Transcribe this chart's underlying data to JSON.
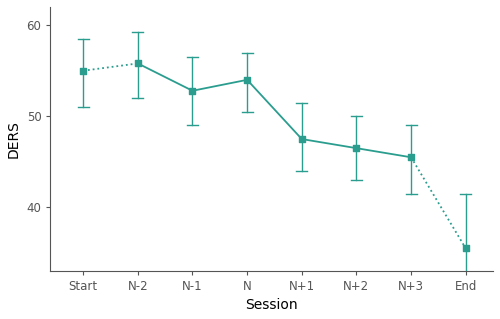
{
  "categories": [
    "Start",
    "N-2",
    "N-1",
    "N",
    "N+1",
    "N+2",
    "N+3",
    "End"
  ],
  "means": [
    55.0,
    55.8,
    52.8,
    54.0,
    47.5,
    46.5,
    45.5,
    35.5
  ],
  "ci_upper": [
    58.5,
    59.2,
    56.5,
    57.0,
    51.5,
    50.0,
    49.0,
    41.5
  ],
  "ci_lower": [
    51.0,
    52.0,
    49.0,
    50.5,
    44.0,
    43.0,
    41.5,
    30.0
  ],
  "color": "#2a9d8f",
  "xlabel": "Session",
  "ylabel": "DERS",
  "ylim": [
    33,
    62
  ],
  "yticks": [
    40,
    50,
    60
  ],
  "figsize": [
    5.0,
    3.19
  ],
  "dpi": 100
}
